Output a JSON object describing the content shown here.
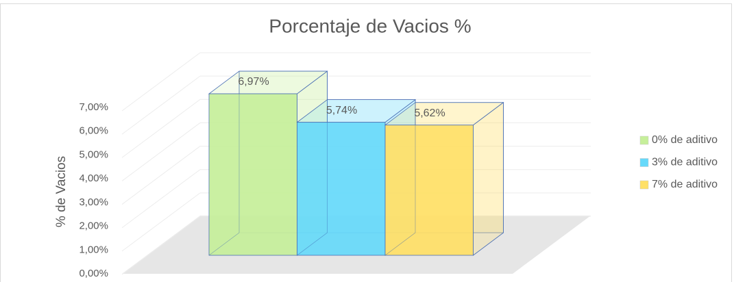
{
  "chart_data": {
    "type": "bar",
    "title": "Porcentaje de Vacios %",
    "y_label": "% de Vacios",
    "series": [
      {
        "name": "0% de aditivo",
        "color": "#c6ef9a",
        "values": [
          6.97
        ],
        "value_labels": [
          "6,97%"
        ]
      },
      {
        "name": "3% de aditivo",
        "color": "#66d9fa",
        "values": [
          5.74
        ],
        "value_labels": [
          "5,74%"
        ]
      },
      {
        "name": "7% de aditivo",
        "color": "#ffe066",
        "values": [
          5.62
        ],
        "value_labels": [
          "5,62%"
        ]
      }
    ],
    "ylim": [
      0,
      7
    ],
    "yticks": [
      {
        "value": 0,
        "label": "0,00%"
      },
      {
        "value": 1,
        "label": "1,00%"
      },
      {
        "value": 2,
        "label": "2,00%"
      },
      {
        "value": 3,
        "label": "3,00%"
      },
      {
        "value": 4,
        "label": "4,00%"
      },
      {
        "value": 5,
        "label": "5,00%"
      },
      {
        "value": 6,
        "label": "6,00%"
      },
      {
        "value": 7,
        "label": "7,00%"
      }
    ],
    "grid": true,
    "legend": "right"
  }
}
